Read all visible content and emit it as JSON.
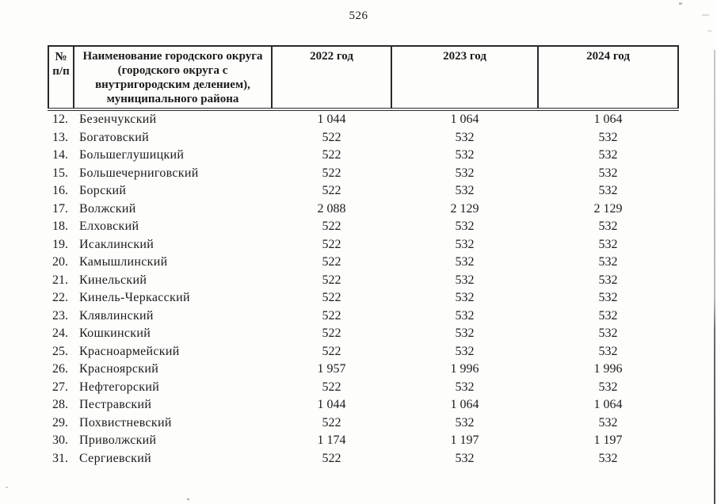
{
  "page": {
    "number": "526"
  },
  "table": {
    "headers": {
      "num": "№\nп/п",
      "name": "Наименование городского округа\n(городского округа с\nвнутригородским делением),\nмуниципального района",
      "years": [
        "2022 год",
        "2023 год",
        "2024 год"
      ]
    },
    "rows": [
      {
        "num": "12.",
        "name": "Безенчукский",
        "y2022": "1 044",
        "y2023": "1 064",
        "y2024": "1 064"
      },
      {
        "num": "13.",
        "name": "Богатовский",
        "y2022": "522",
        "y2023": "532",
        "y2024": "532"
      },
      {
        "num": "14.",
        "name": "Большеглушицкий",
        "y2022": "522",
        "y2023": "532",
        "y2024": "532"
      },
      {
        "num": "15.",
        "name": "Большечерниговский",
        "y2022": "522",
        "y2023": "532",
        "y2024": "532"
      },
      {
        "num": "16.",
        "name": "Борский",
        "y2022": "522",
        "y2023": "532",
        "y2024": "532"
      },
      {
        "num": "17.",
        "name": "Волжский",
        "y2022": "2 088",
        "y2023": "2 129",
        "y2024": "2 129"
      },
      {
        "num": "18.",
        "name": "Елховский",
        "y2022": "522",
        "y2023": "532",
        "y2024": "532"
      },
      {
        "num": "19.",
        "name": "Исаклинский",
        "y2022": "522",
        "y2023": "532",
        "y2024": "532"
      },
      {
        "num": "20.",
        "name": "Камышлинский",
        "y2022": "522",
        "y2023": "532",
        "y2024": "532"
      },
      {
        "num": "21.",
        "name": "Кинельский",
        "y2022": "522",
        "y2023": "532",
        "y2024": "532"
      },
      {
        "num": "22.",
        "name": "Кинель-Черкасский",
        "y2022": "522",
        "y2023": "532",
        "y2024": "532"
      },
      {
        "num": "23.",
        "name": "Клявлинский",
        "y2022": "522",
        "y2023": "532",
        "y2024": "532"
      },
      {
        "num": "24.",
        "name": "Кошкинский",
        "y2022": "522",
        "y2023": "532",
        "y2024": "532"
      },
      {
        "num": "25.",
        "name": "Красноармейский",
        "y2022": "522",
        "y2023": "532",
        "y2024": "532"
      },
      {
        "num": "26.",
        "name": "Красноярский",
        "y2022": "1 957",
        "y2023": "1 996",
        "y2024": "1 996"
      },
      {
        "num": "27.",
        "name": "Нефтегорский",
        "y2022": "522",
        "y2023": "532",
        "y2024": "532"
      },
      {
        "num": "28.",
        "name": "Пестравский",
        "y2022": "1 044",
        "y2023": "1 064",
        "y2024": "1 064"
      },
      {
        "num": "29.",
        "name": "Похвистневский",
        "y2022": "522",
        "y2023": "532",
        "y2024": "532"
      },
      {
        "num": "30.",
        "name": "Приволжский",
        "y2022": "1 174",
        "y2023": "1 197",
        "y2024": "1 197"
      },
      {
        "num": "31.",
        "name": "Сергиевский",
        "y2022": "522",
        "y2023": "532",
        "y2024": "532"
      }
    ]
  }
}
